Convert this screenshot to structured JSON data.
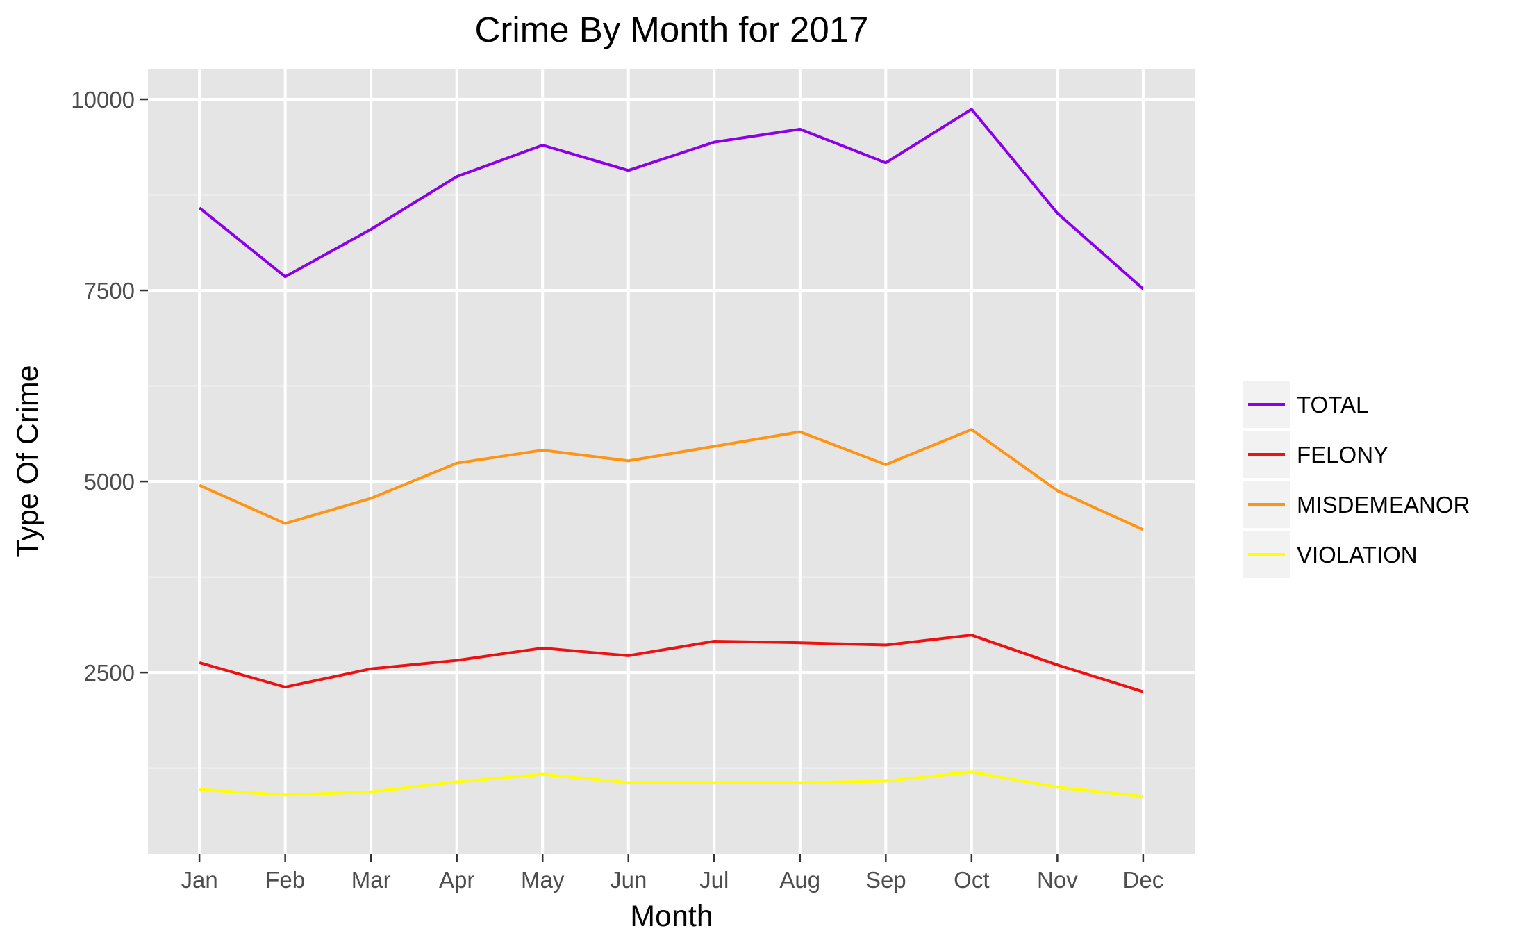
{
  "chart_data": {
    "type": "line",
    "title": "Crime By Month for 2017",
    "xlabel": "Month",
    "ylabel": "Type Of Crime",
    "categories": [
      "Jan",
      "Feb",
      "Mar",
      "Apr",
      "May",
      "Jun",
      "Jul",
      "Aug",
      "Sep",
      "Oct",
      "Nov",
      "Dec"
    ],
    "y_ticks": [
      "2500",
      "5000",
      "7500",
      "10000"
    ],
    "ylim": [
      120,
      10400
    ],
    "grid": true,
    "legend_position": "right",
    "series": [
      {
        "name": "TOTAL",
        "color": "#8b00e8",
        "values": [
          8580,
          7680,
          8300,
          8990,
          9400,
          9070,
          9440,
          9610,
          9170,
          9870,
          8510,
          7520
        ]
      },
      {
        "name": "FELONY",
        "color": "#ee1111",
        "values": [
          2630,
          2310,
          2550,
          2660,
          2820,
          2720,
          2910,
          2890,
          2860,
          2990,
          2600,
          2250
        ]
      },
      {
        "name": "MISDEMEANOR",
        "color": "#ff9414",
        "values": [
          4950,
          4450,
          4780,
          5240,
          5410,
          5270,
          5460,
          5650,
          5220,
          5680,
          4880,
          4370
        ]
      },
      {
        "name": "VIOLATION",
        "color": "#ffff00",
        "values": [
          970,
          900,
          940,
          1070,
          1170,
          1060,
          1060,
          1060,
          1080,
          1200,
          1000,
          880
        ]
      }
    ]
  }
}
